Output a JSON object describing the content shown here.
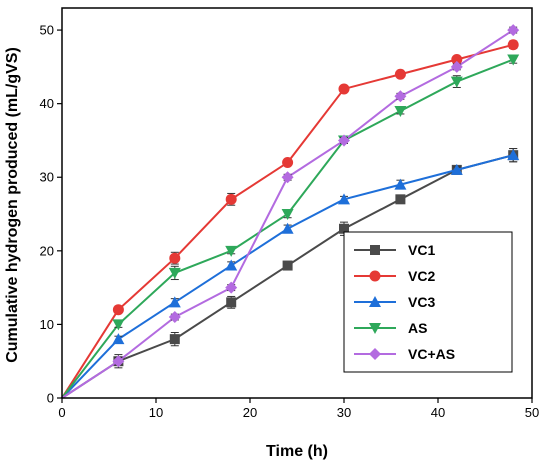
{
  "chart_data": {
    "type": "line",
    "title": "",
    "xlabel": "Time (h)",
    "ylabel": "Cumulative hydrogen produced (mL/gVS)",
    "xlim": [
      0,
      50
    ],
    "ylim": [
      0,
      53
    ],
    "xticks": [
      0,
      10,
      20,
      30,
      40,
      50
    ],
    "yticks": [
      0,
      10,
      20,
      30,
      40,
      50
    ],
    "grid": false,
    "legend_position": "bottom-right",
    "series": [
      {
        "name": "VC1",
        "color": "#4a4a4a",
        "marker": "square",
        "x": [
          0,
          6,
          12,
          18,
          24,
          30,
          36,
          42,
          48
        ],
        "y": [
          0,
          5,
          8,
          13,
          18,
          23,
          27,
          31,
          33
        ],
        "err": [
          0,
          0.9,
          0.9,
          0.8,
          0.4,
          0.9,
          0.5,
          0.4,
          0.9
        ]
      },
      {
        "name": "VC2",
        "color": "#e53935",
        "marker": "circle",
        "x": [
          0,
          6,
          12,
          18,
          24,
          30,
          36,
          42,
          48
        ],
        "y": [
          0,
          12,
          19,
          27,
          32,
          42,
          44,
          46,
          48
        ],
        "err": [
          0,
          0.3,
          0.8,
          0.8,
          0.4,
          0.3,
          0.3,
          0.3,
          0.5
        ]
      },
      {
        "name": "VC3",
        "color": "#1e6fd9",
        "marker": "triangle-up",
        "x": [
          0,
          6,
          12,
          18,
          24,
          30,
          36,
          42,
          48
        ],
        "y": [
          0,
          8,
          13,
          18,
          23,
          27,
          29,
          31,
          33
        ],
        "err": [
          0,
          0.4,
          0.5,
          0.5,
          0.5,
          0.4,
          0.6,
          0.4,
          0.9
        ]
      },
      {
        "name": "AS",
        "color": "#2ea85a",
        "marker": "triangle-down",
        "x": [
          0,
          6,
          12,
          18,
          24,
          30,
          36,
          42,
          48
        ],
        "y": [
          0,
          10,
          17,
          20,
          25,
          35,
          39,
          43,
          46
        ],
        "err": [
          0,
          0.4,
          0.9,
          0.4,
          0.5,
          0.4,
          0.4,
          0.8,
          0.5
        ]
      },
      {
        "name": "VC+AS",
        "color": "#b36be0",
        "marker": "diamond",
        "x": [
          0,
          6,
          12,
          18,
          24,
          30,
          36,
          42,
          48
        ],
        "y": [
          0,
          5,
          11,
          15,
          30,
          35,
          41,
          45,
          50
        ],
        "err": [
          0,
          0.5,
          0.4,
          0.4,
          0.4,
          0.4,
          0.4,
          0.4,
          0.4
        ]
      }
    ]
  }
}
